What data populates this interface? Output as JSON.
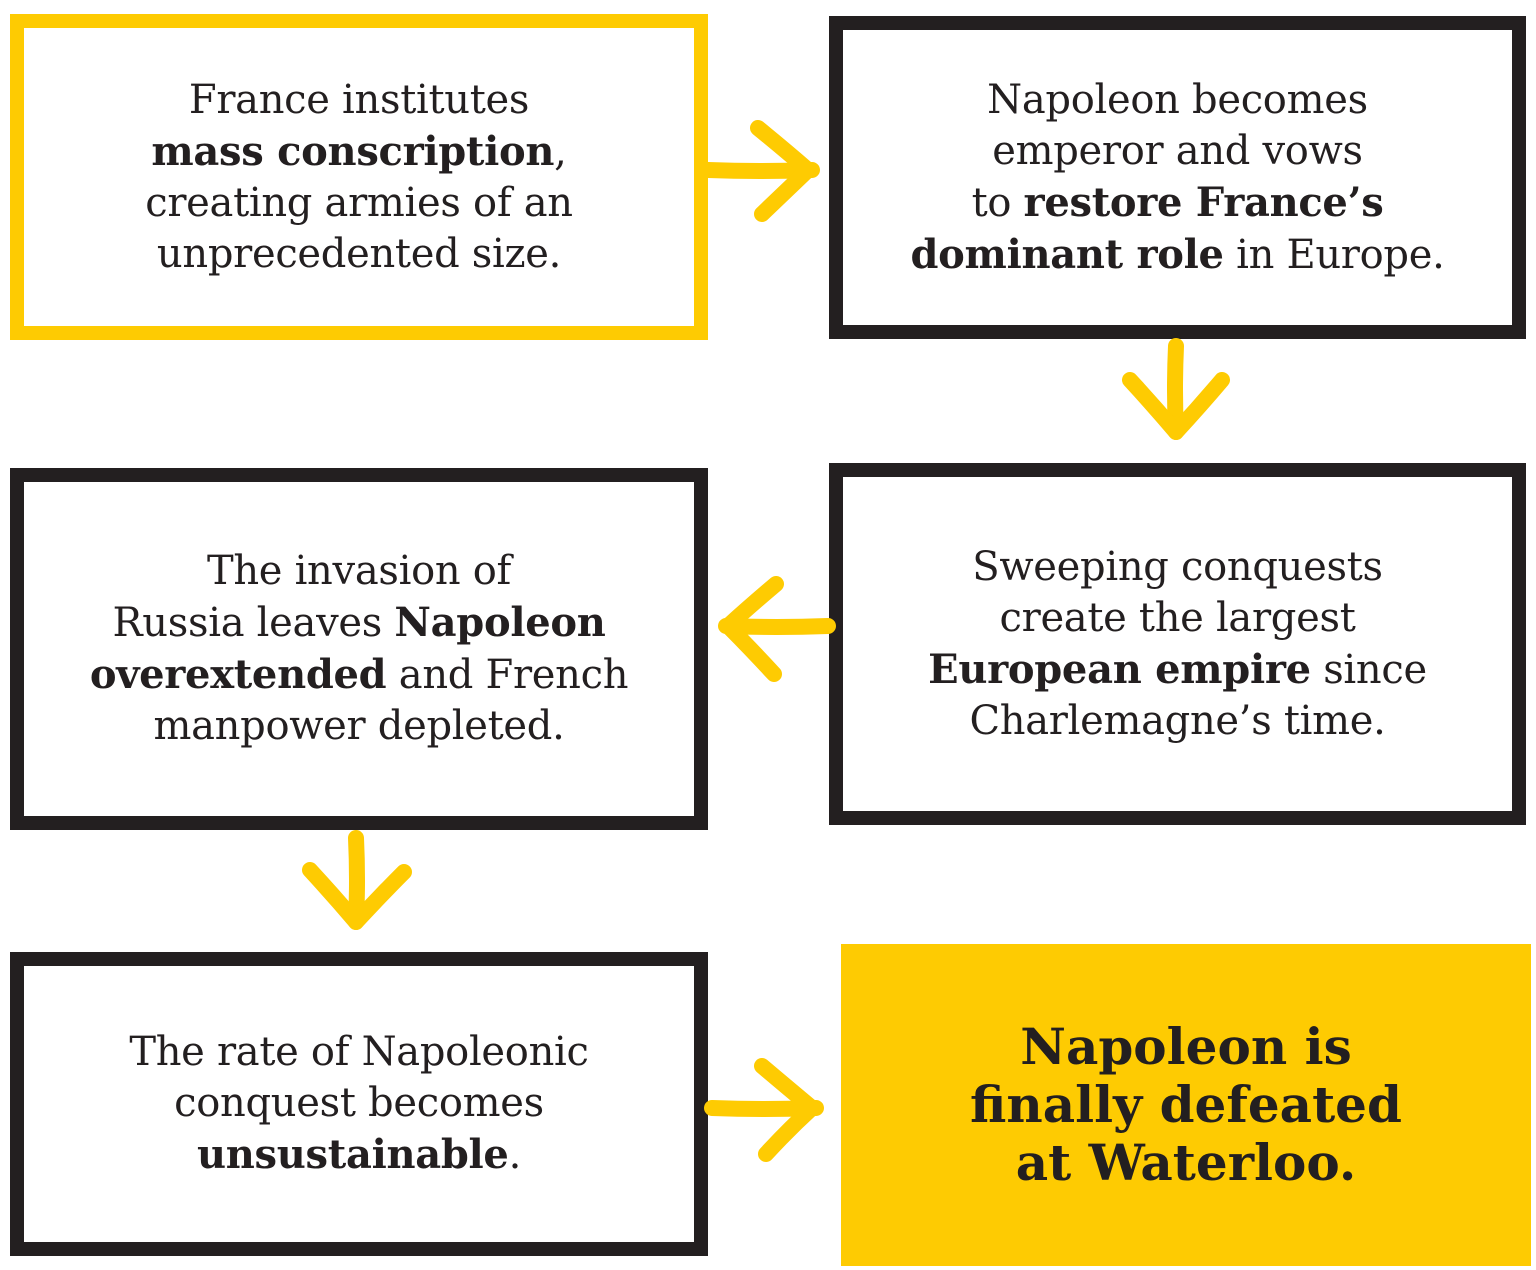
{
  "diagram": {
    "colors": {
      "accent": "#fecb02",
      "ink": "#231f20",
      "background": "#ffffff"
    },
    "step1": {
      "line1": "France institutes",
      "line2_bold": "mass conscription",
      "line2_rest": ",",
      "line3": "creating armies of an",
      "line4": "unprecedented size."
    },
    "step2": {
      "line1": "Napoleon becomes",
      "line2": "emperor and vows",
      "line3_pre": "to ",
      "line3_bold": "restore France’s",
      "line4_bold": "dominant role",
      "line4_rest": " in Europe."
    },
    "step3": {
      "line1": "Sweeping conquests",
      "line2": "create the largest",
      "line3_bold": "European empire",
      "line3_rest": " since",
      "line4": "Charlemagne’s time."
    },
    "step4": {
      "line1": "The invasion of",
      "line2_pre": "Russia leaves ",
      "line2_bold": "Napoleon",
      "line3_bold": "overextended",
      "line3_rest": " and French",
      "line4": "manpower depleted."
    },
    "step5": {
      "line1": "The rate of Napoleonic",
      "line2": "conquest becomes",
      "line3_bold": "unsustainable",
      "line3_rest": "."
    },
    "step6": {
      "line1": "Napoleon is",
      "line2": "finally defeated",
      "line3": "at Waterloo."
    },
    "arrows": [
      {
        "from": "step1",
        "to": "step2",
        "direction": "right"
      },
      {
        "from": "step2",
        "to": "step3",
        "direction": "down"
      },
      {
        "from": "step3",
        "to": "step4",
        "direction": "left"
      },
      {
        "from": "step4",
        "to": "step5",
        "direction": "down"
      },
      {
        "from": "step5",
        "to": "step6",
        "direction": "right"
      }
    ]
  }
}
